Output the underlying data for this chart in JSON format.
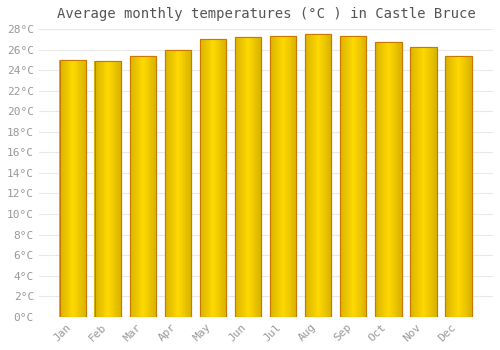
{
  "title": "Average monthly temperatures (°C ) in Castle Bruce",
  "months": [
    "Jan",
    "Feb",
    "Mar",
    "Apr",
    "May",
    "Jun",
    "Jul",
    "Aug",
    "Sep",
    "Oct",
    "Nov",
    "Dec"
  ],
  "values": [
    25.0,
    24.9,
    25.4,
    26.0,
    27.0,
    27.2,
    27.3,
    27.5,
    27.3,
    26.7,
    26.3,
    25.4
  ],
  "bar_color_center": "#FFB300",
  "bar_color_edge": "#E08000",
  "bar_edge_color": "#CC7700",
  "ylim": [
    0,
    28
  ],
  "ytick_step": 2,
  "background_color": "#ffffff",
  "grid_color": "#e8e8e8",
  "title_fontsize": 10,
  "tick_fontsize": 8,
  "title_font": "monospace",
  "tick_font": "monospace",
  "bar_width": 0.75
}
